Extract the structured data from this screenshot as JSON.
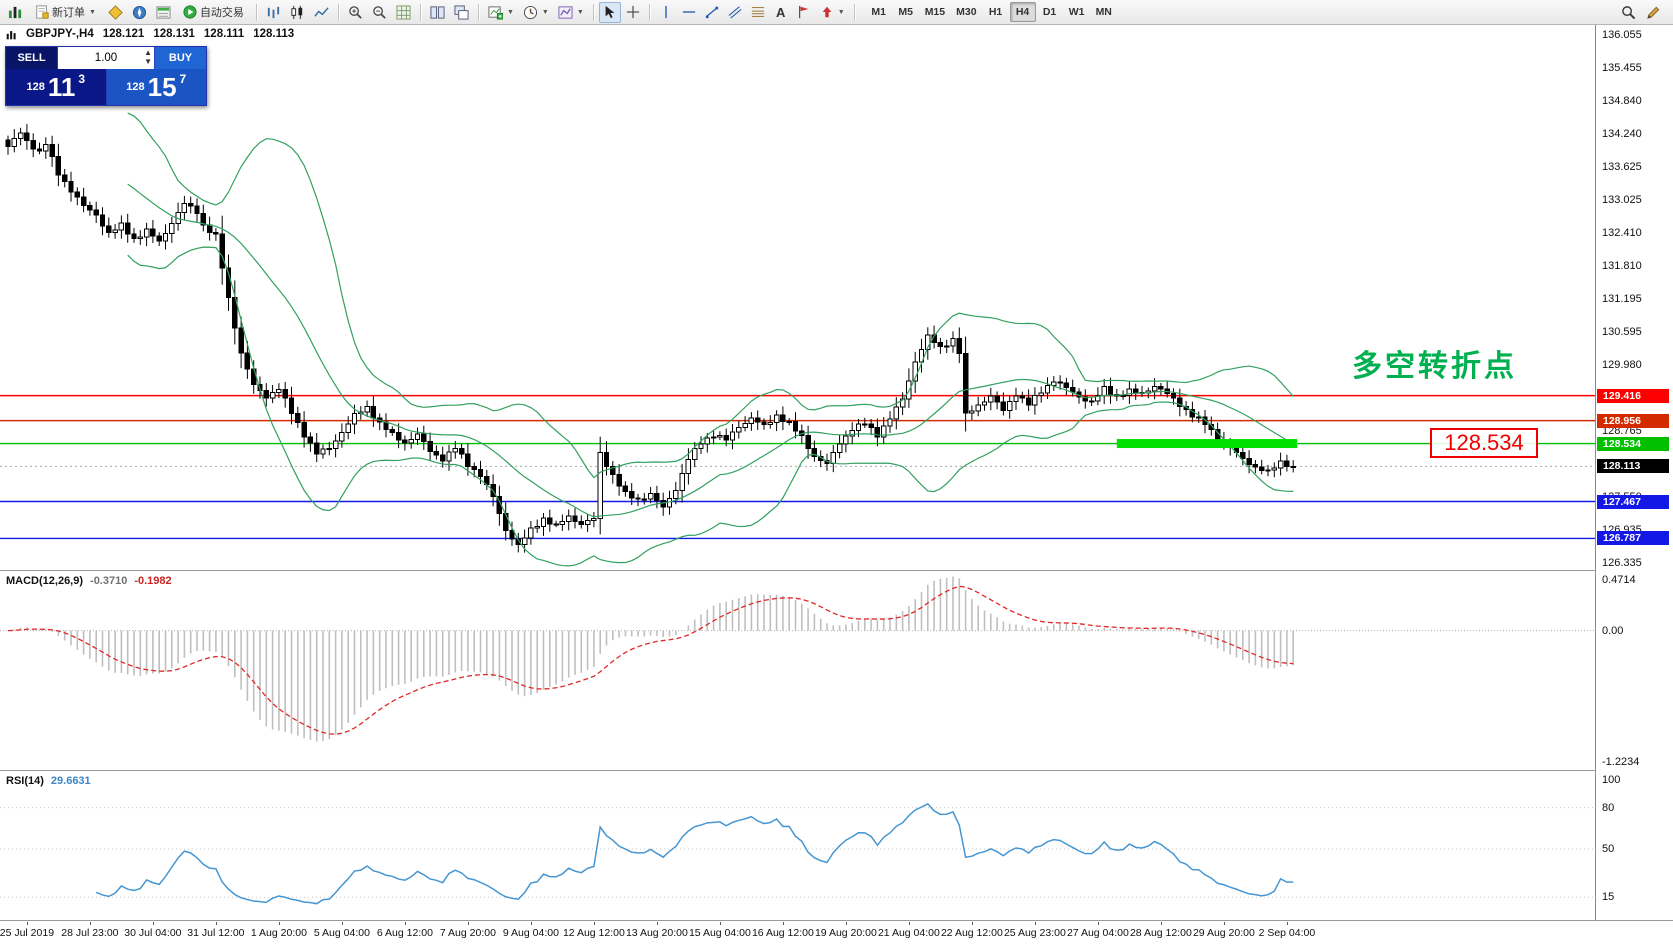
{
  "window": {
    "title": "GBPJPY-,H4"
  },
  "toolbar": {
    "new_order": "新订单",
    "autotrade": "自动交易",
    "text_tool": "A",
    "timeframes": [
      "M1",
      "M5",
      "M15",
      "M30",
      "H1",
      "H4",
      "D1",
      "W1",
      "MN"
    ],
    "active_timeframe": "H4"
  },
  "symbol_row": {
    "symbol": "GBPJPY-,H4",
    "open": "128.121",
    "high": "128.131",
    "low": "128.111",
    "close": "128.113"
  },
  "trade_panel": {
    "sell_label": "SELL",
    "buy_label": "BUY",
    "lot_size": "1.00",
    "sell_price": {
      "prefix": "128",
      "big": "11",
      "sup": "3"
    },
    "buy_price": {
      "prefix": "128",
      "big": "15",
      "sup": "7"
    }
  },
  "annotations": {
    "turning_point_text": "多空转折点",
    "price_box_text": "128.534"
  },
  "price_scale_labels": [
    "136.055",
    "135.455",
    "134.840",
    "134.240",
    "133.625",
    "133.025",
    "132.410",
    "131.810",
    "131.195",
    "130.595",
    "129.980",
    "129.380",
    "128.765",
    "128.165",
    "127.550",
    "126.935",
    "126.335"
  ],
  "horizontal_lines": [
    {
      "price": 129.416,
      "label": "129.416",
      "color": "#fe0000"
    },
    {
      "price": 128.956,
      "label": "128.956",
      "color": "#d42a00"
    },
    {
      "price": 128.534,
      "label": "128.534",
      "color": "#00c000"
    },
    {
      "price": 127.467,
      "label": "127.467",
      "color": "#1418e6"
    },
    {
      "price": 126.787,
      "label": "126.787",
      "color": "#1418e6"
    }
  ],
  "bid_line": {
    "price": 128.113,
    "label": "128.113",
    "color": "#000000"
  },
  "highlight_band": {
    "price": 128.534,
    "start_candle": 176,
    "end_candle": 205,
    "color": "#00e000",
    "thickness": 9
  },
  "macd_panel": {
    "label": "MACD(12,26,9)",
    "main_value": "-0.3710",
    "signal_value": "-0.1982",
    "scale_labels": [
      "0.4714",
      "0.00",
      "-1.2234"
    ],
    "scale_values": [
      0.4714,
      0,
      -1.2234
    ]
  },
  "rsi_panel": {
    "label": "RSI(14)",
    "value": "29.6631",
    "scale_labels": [
      "100",
      "80",
      "50",
      "15"
    ],
    "scale_values": [
      100,
      80,
      50,
      15
    ]
  },
  "time_axis": {
    "labels": [
      "25 Jul 2019",
      "28 Jul 23:00",
      "30 Jul 04:00",
      "31 Jul 12:00",
      "1 Aug 20:00",
      "5 Aug 04:00",
      "6 Aug 12:00",
      "7 Aug 20:00",
      "9 Aug 04:00",
      "12 Aug 12:00",
      "13 Aug 20:00",
      "15 Aug 04:00",
      "16 Aug 12:00",
      "19 Aug 20:00",
      "21 Aug 04:00",
      "22 Aug 12:00",
      "25 Aug 23:00",
      "27 Aug 04:00",
      "28 Aug 12:00",
      "29 Aug 20:00",
      "2 Sep 04:00"
    ],
    "first_label_candle": 3,
    "candles_per_label": 10
  },
  "chart_data": {
    "type": "candlestick",
    "symbol": "GBPJPY",
    "timeframe": "H4",
    "ylim": [
      126.335,
      136.055
    ],
    "candle_count": 205,
    "last_close": 128.113,
    "panels": [
      "main-candles+bollinger",
      "macd-histogram+signal",
      "rsi-line"
    ],
    "indicators": [
      "Bollinger Bands 20,2 (green)",
      "MACD(12,26,9) silver histogram with red dashed signal",
      "RSI(14) blue line"
    ],
    "bollinger_color": "#33a05f",
    "macd_hist_color": "#bfbfbf",
    "macd_signal_color": "#e02828",
    "rsi_color": "#4596d2",
    "up_candle": {
      "fill": "#ffffff",
      "stroke": "#000000"
    },
    "down_candle": {
      "fill": "#000000",
      "stroke": "#000000"
    },
    "price_anchors": [
      [
        0,
        134.0
      ],
      [
        2,
        134.25
      ],
      [
        3,
        134.1
      ],
      [
        5,
        133.9
      ],
      [
        6,
        134.05
      ],
      [
        8,
        133.5
      ],
      [
        10,
        133.2
      ],
      [
        12,
        132.9
      ],
      [
        14,
        132.75
      ],
      [
        16,
        132.4
      ],
      [
        18,
        132.55
      ],
      [
        20,
        132.3
      ],
      [
        22,
        132.45
      ],
      [
        24,
        132.25
      ],
      [
        26,
        132.6
      ],
      [
        28,
        132.95
      ],
      [
        30,
        132.8
      ],
      [
        31,
        132.55
      ],
      [
        33,
        132.35
      ],
      [
        35,
        131.2
      ],
      [
        37,
        130.2
      ],
      [
        39,
        129.6
      ],
      [
        41,
        129.4
      ],
      [
        43,
        129.55
      ],
      [
        45,
        129.1
      ],
      [
        47,
        128.7
      ],
      [
        49,
        128.35
      ],
      [
        51,
        128.45
      ],
      [
        53,
        128.75
      ],
      [
        55,
        129.05
      ],
      [
        57,
        129.2
      ],
      [
        59,
        128.9
      ],
      [
        61,
        128.7
      ],
      [
        63,
        128.55
      ],
      [
        65,
        128.7
      ],
      [
        67,
        128.4
      ],
      [
        69,
        128.25
      ],
      [
        71,
        128.45
      ],
      [
        73,
        128.15
      ],
      [
        75,
        127.95
      ],
      [
        77,
        127.55
      ],
      [
        79,
        126.95
      ],
      [
        81,
        126.65
      ],
      [
        83,
        126.95
      ],
      [
        85,
        127.15
      ],
      [
        87,
        127.0
      ],
      [
        89,
        127.2
      ],
      [
        91,
        127.05
      ],
      [
        93,
        127.15
      ],
      [
        94,
        128.35
      ],
      [
        96,
        127.95
      ],
      [
        98,
        127.6
      ],
      [
        100,
        127.5
      ],
      [
        102,
        127.6
      ],
      [
        104,
        127.35
      ],
      [
        106,
        127.7
      ],
      [
        108,
        128.25
      ],
      [
        110,
        128.55
      ],
      [
        112,
        128.7
      ],
      [
        114,
        128.6
      ],
      [
        116,
        128.85
      ],
      [
        118,
        129.0
      ],
      [
        120,
        128.85
      ],
      [
        122,
        129.05
      ],
      [
        124,
        128.9
      ],
      [
        126,
        128.65
      ],
      [
        128,
        128.3
      ],
      [
        130,
        128.15
      ],
      [
        132,
        128.55
      ],
      [
        134,
        128.8
      ],
      [
        136,
        128.9
      ],
      [
        138,
        128.7
      ],
      [
        140,
        129.0
      ],
      [
        142,
        129.35
      ],
      [
        144,
        130.05
      ],
      [
        146,
        130.5
      ],
      [
        148,
        130.3
      ],
      [
        150,
        130.45
      ],
      [
        151,
        130.2
      ],
      [
        152,
        129.05
      ],
      [
        154,
        129.25
      ],
      [
        156,
        129.4
      ],
      [
        158,
        129.15
      ],
      [
        160,
        129.45
      ],
      [
        162,
        129.25
      ],
      [
        164,
        129.5
      ],
      [
        166,
        129.7
      ],
      [
        168,
        129.55
      ],
      [
        170,
        129.4
      ],
      [
        172,
        129.3
      ],
      [
        174,
        129.55
      ],
      [
        176,
        129.4
      ],
      [
        178,
        129.5
      ],
      [
        180,
        129.45
      ],
      [
        182,
        129.6
      ],
      [
        184,
        129.45
      ],
      [
        186,
        129.25
      ],
      [
        188,
        129.05
      ],
      [
        190,
        128.9
      ],
      [
        192,
        128.65
      ],
      [
        194,
        128.45
      ],
      [
        196,
        128.25
      ],
      [
        198,
        128.1
      ],
      [
        200,
        128.0
      ],
      [
        202,
        128.2
      ],
      [
        204,
        128.113
      ]
    ]
  }
}
